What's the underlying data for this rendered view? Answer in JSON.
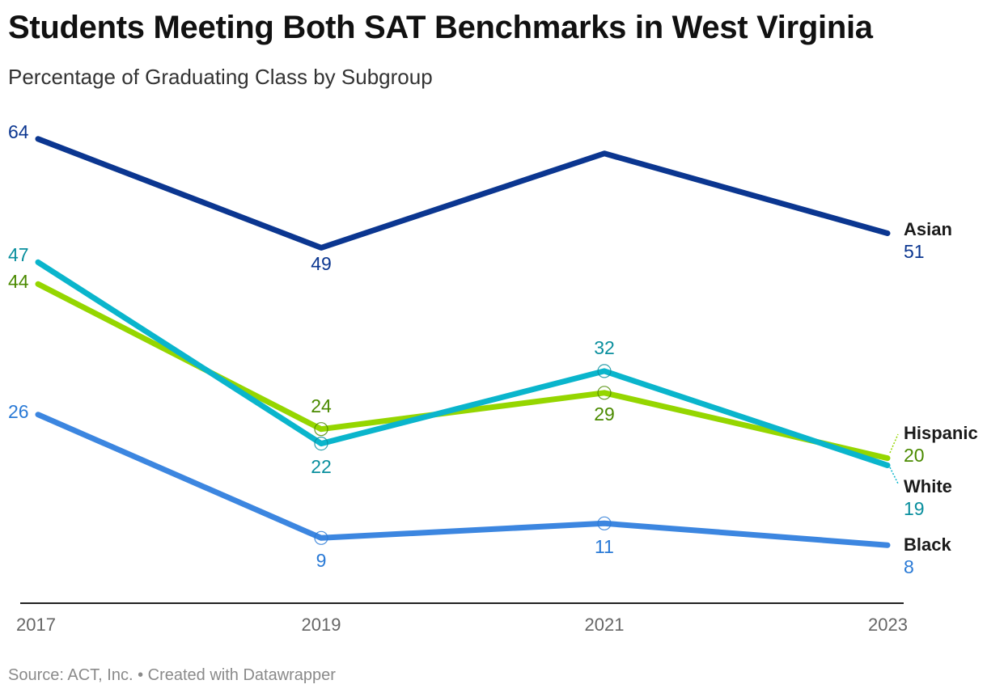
{
  "title": "Students Meeting Both SAT Benchmarks in West Virginia",
  "subtitle": "Percentage of Graduating Class by Subgroup",
  "source": "Source: ACT, Inc. • Created with Datawrapper",
  "chart_data": {
    "type": "line",
    "title": "Students Meeting Both SAT Benchmarks in West Virginia",
    "subtitle": "Percentage of Graduating Class by Subgroup",
    "x": [
      "2017",
      "2019",
      "2021",
      "2023"
    ],
    "ylim": [
      0,
      70
    ],
    "grid": false,
    "legend": "direct labels at line ends",
    "series": [
      {
        "name": "Asian",
        "values": [
          64,
          49,
          62,
          51
        ],
        "color": "#0b3690",
        "label_color": "#0b3690",
        "labels": [
          "64",
          "49",
          null,
          "51"
        ]
      },
      {
        "name": "Hispanic",
        "values": [
          44,
          24,
          29,
          20
        ],
        "color": "#95d600",
        "label_color": "#4a8a00",
        "labels": [
          "44",
          "24",
          "29",
          "20"
        ]
      },
      {
        "name": "White",
        "values": [
          47,
          22,
          32,
          19
        ],
        "color": "#0ab5cc",
        "label_color": "#0a8f9e",
        "labels": [
          "47",
          "22",
          "32",
          "19"
        ]
      },
      {
        "name": "Black",
        "values": [
          26,
          9,
          11,
          8
        ],
        "color": "#3c86e0",
        "label_color": "#2a7ad6",
        "labels": [
          "26",
          "9",
          "11",
          "8"
        ]
      }
    ]
  }
}
